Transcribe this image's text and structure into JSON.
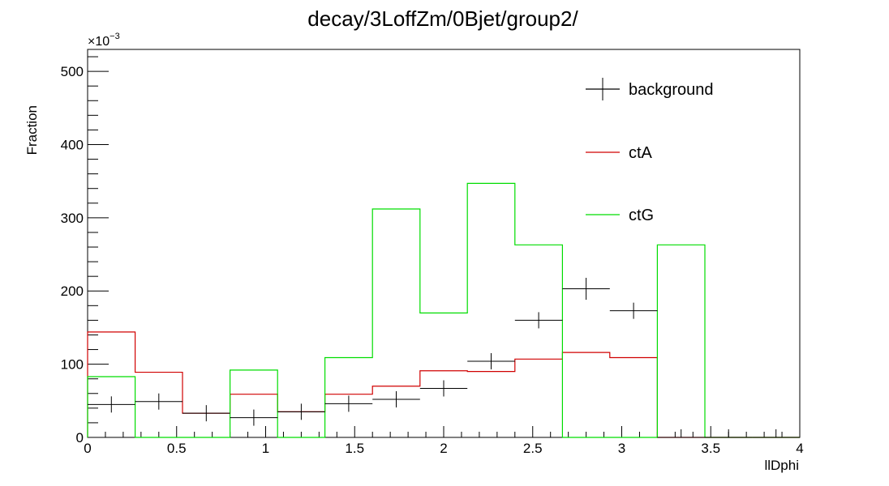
{
  "chart_data": {
    "type": "histogram",
    "title": "decay/3LoffZm/0Bjet/group2/",
    "xlabel": "llDphi",
    "ylabel": "Fraction",
    "y_exponent_label": "×10",
    "y_exponent_power": "−3",
    "xlim": [
      0,
      4
    ],
    "ylim": [
      0,
      530
    ],
    "x_ticks": [
      "0",
      "0.5",
      "1",
      "1.5",
      "2",
      "2.5",
      "3",
      "3.5",
      "4"
    ],
    "y_ticks": [
      "0",
      "100",
      "200",
      "300",
      "400",
      "500"
    ],
    "bin_edges": [
      0,
      0.267,
      0.533,
      0.8,
      1.067,
      1.333,
      1.6,
      1.867,
      2.133,
      2.4,
      2.667,
      2.933,
      3.2,
      3.467,
      3.733,
      4.0
    ],
    "series": [
      {
        "name": "background",
        "color": "#000000",
        "style": "errorbar",
        "values": [
          45,
          49,
          33,
          27,
          35,
          46,
          52,
          67,
          104,
          160,
          203,
          173,
          0,
          0,
          0
        ],
        "errors": [
          8,
          7,
          7,
          6,
          10,
          8,
          7,
          8,
          9,
          10,
          15,
          10,
          0,
          0,
          0
        ]
      },
      {
        "name": "ctA",
        "color": "#d00000",
        "style": "step",
        "values": [
          144,
          89,
          33,
          59,
          35,
          59,
          70,
          91,
          90,
          107,
          116,
          109,
          0,
          0,
          0
        ]
      },
      {
        "name": "ctG",
        "color": "#00dd00",
        "style": "step",
        "values": [
          83,
          0,
          0,
          92,
          0,
          109,
          312,
          170,
          347,
          263,
          0,
          0,
          263,
          0,
          0
        ]
      }
    ],
    "legend_position": "top-right",
    "grid": false
  }
}
